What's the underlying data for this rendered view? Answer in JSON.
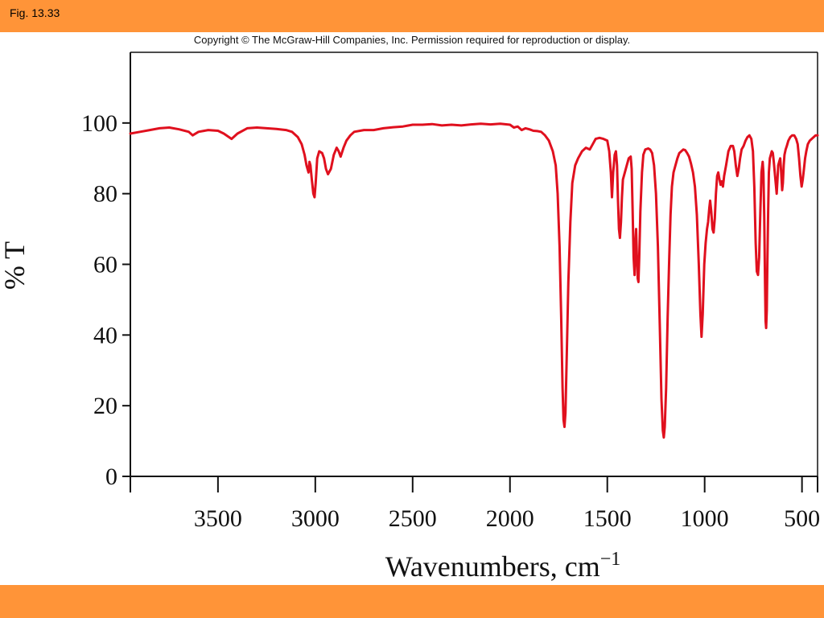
{
  "header": {
    "fig_label": "Fig. 13.33"
  },
  "copyright": "Copyright © The McGraw-Hill Companies, Inc. Permission required for reproduction or display.",
  "colors": {
    "bar": "#ff9438",
    "spectrum": "#e0101e",
    "axis": "#111111"
  },
  "chart_data": {
    "type": "line",
    "title": "",
    "xlabel": "Wavenumbers, cm",
    "xlabel_superscript": "−1",
    "ylabel": "% T",
    "xlim": [
      3950,
      420
    ],
    "ylim": [
      0,
      120
    ],
    "x_reversed": true,
    "grid": false,
    "x_ticks": [
      {
        "value": 3500,
        "label": "3500"
      },
      {
        "value": 3000,
        "label": "3000"
      },
      {
        "value": 2500,
        "label": "2500"
      },
      {
        "value": 2000,
        "label": "2000"
      },
      {
        "value": 1500,
        "label": "1500"
      },
      {
        "value": 1000,
        "label": "1000"
      },
      {
        "value": 500,
        "label": "500"
      }
    ],
    "y_ticks": [
      {
        "value": 0,
        "label": "0"
      },
      {
        "value": 20,
        "label": "20"
      },
      {
        "value": 40,
        "label": "40"
      },
      {
        "value": 60,
        "label": "60"
      },
      {
        "value": 80,
        "label": "80"
      },
      {
        "value": 100,
        "label": "100"
      }
    ],
    "series": [
      {
        "points": [
          [
            3950,
            97
          ],
          [
            3900,
            97.5
          ],
          [
            3850,
            98
          ],
          [
            3800,
            98.5
          ],
          [
            3750,
            98.7
          ],
          [
            3700,
            98.2
          ],
          [
            3650,
            97.5
          ],
          [
            3630,
            96.5
          ],
          [
            3600,
            97.5
          ],
          [
            3550,
            98
          ],
          [
            3500,
            97.8
          ],
          [
            3470,
            97
          ],
          [
            3430,
            95.5
          ],
          [
            3400,
            97
          ],
          [
            3350,
            98.5
          ],
          [
            3300,
            98.7
          ],
          [
            3250,
            98.5
          ],
          [
            3200,
            98.3
          ],
          [
            3150,
            98
          ],
          [
            3120,
            97.5
          ],
          [
            3090,
            96
          ],
          [
            3070,
            94
          ],
          [
            3055,
            91
          ],
          [
            3045,
            88
          ],
          [
            3035,
            86
          ],
          [
            3030,
            89
          ],
          [
            3025,
            88
          ],
          [
            3018,
            84
          ],
          [
            3010,
            80
          ],
          [
            3004,
            79
          ],
          [
            2998,
            83
          ],
          [
            2990,
            90
          ],
          [
            2980,
            92
          ],
          [
            2965,
            91.5
          ],
          [
            2955,
            90
          ],
          [
            2945,
            87
          ],
          [
            2935,
            85.5
          ],
          [
            2920,
            87
          ],
          [
            2905,
            91
          ],
          [
            2890,
            93
          ],
          [
            2880,
            92
          ],
          [
            2870,
            90.5
          ],
          [
            2855,
            93
          ],
          [
            2840,
            95
          ],
          [
            2820,
            96.5
          ],
          [
            2800,
            97.5
          ],
          [
            2750,
            98
          ],
          [
            2700,
            98
          ],
          [
            2650,
            98.5
          ],
          [
            2600,
            98.8
          ],
          [
            2550,
            99
          ],
          [
            2500,
            99.5
          ],
          [
            2450,
            99.5
          ],
          [
            2400,
            99.7
          ],
          [
            2350,
            99.3
          ],
          [
            2300,
            99.5
          ],
          [
            2250,
            99.3
          ],
          [
            2200,
            99.6
          ],
          [
            2150,
            99.8
          ],
          [
            2100,
            99.6
          ],
          [
            2050,
            99.8
          ],
          [
            2000,
            99.5
          ],
          [
            1980,
            98.7
          ],
          [
            1960,
            99
          ],
          [
            1940,
            98
          ],
          [
            1920,
            98.5
          ],
          [
            1900,
            98.2
          ],
          [
            1880,
            97.8
          ],
          [
            1860,
            97.7
          ],
          [
            1840,
            97.5
          ],
          [
            1820,
            96.5
          ],
          [
            1800,
            95
          ],
          [
            1780,
            92
          ],
          [
            1765,
            88
          ],
          [
            1755,
            80
          ],
          [
            1745,
            65
          ],
          [
            1737,
            45
          ],
          [
            1730,
            25
          ],
          [
            1725,
            16
          ],
          [
            1720,
            14
          ],
          [
            1715,
            18
          ],
          [
            1708,
            35
          ],
          [
            1700,
            55
          ],
          [
            1690,
            72
          ],
          [
            1680,
            83
          ],
          [
            1665,
            88
          ],
          [
            1650,
            90
          ],
          [
            1630,
            92
          ],
          [
            1610,
            93
          ],
          [
            1590,
            92.5
          ],
          [
            1575,
            94
          ],
          [
            1560,
            95.5
          ],
          [
            1540,
            95.8
          ],
          [
            1520,
            95.5
          ],
          [
            1500,
            95
          ],
          [
            1490,
            92
          ],
          [
            1482,
            86
          ],
          [
            1476,
            79
          ],
          [
            1470,
            86
          ],
          [
            1462,
            91
          ],
          [
            1456,
            92
          ],
          [
            1450,
            88
          ],
          [
            1445,
            78
          ],
          [
            1440,
            70
          ],
          [
            1435,
            67.5
          ],
          [
            1430,
            72
          ],
          [
            1425,
            79
          ],
          [
            1420,
            84
          ],
          [
            1410,
            86
          ],
          [
            1400,
            88
          ],
          [
            1390,
            90
          ],
          [
            1380,
            90.5
          ],
          [
            1375,
            87
          ],
          [
            1370,
            75
          ],
          [
            1365,
            62
          ],
          [
            1360,
            57
          ],
          [
            1356,
            66
          ],
          [
            1352,
            70
          ],
          [
            1348,
            62
          ],
          [
            1344,
            56
          ],
          [
            1340,
            55
          ],
          [
            1336,
            62
          ],
          [
            1330,
            75
          ],
          [
            1322,
            86
          ],
          [
            1315,
            91
          ],
          [
            1305,
            92.5
          ],
          [
            1290,
            92.8
          ],
          [
            1280,
            92.5
          ],
          [
            1270,
            91.5
          ],
          [
            1260,
            88
          ],
          [
            1250,
            80
          ],
          [
            1240,
            65
          ],
          [
            1230,
            42
          ],
          [
            1222,
            22
          ],
          [
            1215,
            13
          ],
          [
            1210,
            11
          ],
          [
            1205,
            14
          ],
          [
            1198,
            25
          ],
          [
            1190,
            45
          ],
          [
            1182,
            62
          ],
          [
            1175,
            74
          ],
          [
            1168,
            82
          ],
          [
            1160,
            86
          ],
          [
            1150,
            88
          ],
          [
            1140,
            90
          ],
          [
            1130,
            91.5
          ],
          [
            1120,
            92
          ],
          [
            1110,
            92.5
          ],
          [
            1100,
            92.3
          ],
          [
            1090,
            91.5
          ],
          [
            1080,
            90.5
          ],
          [
            1070,
            88.5
          ],
          [
            1060,
            86
          ],
          [
            1050,
            82
          ],
          [
            1040,
            74
          ],
          [
            1030,
            60
          ],
          [
            1022,
            46
          ],
          [
            1016,
            39.5
          ],
          [
            1010,
            46
          ],
          [
            1002,
            60
          ],
          [
            995,
            66
          ],
          [
            988,
            70
          ],
          [
            982,
            72
          ],
          [
            976,
            76
          ],
          [
            972,
            78
          ],
          [
            966,
            75
          ],
          [
            960,
            70
          ],
          [
            954,
            69
          ],
          [
            948,
            73
          ],
          [
            942,
            80
          ],
          [
            936,
            85
          ],
          [
            930,
            86
          ],
          [
            924,
            84
          ],
          [
            918,
            82.5
          ],
          [
            912,
            83.5
          ],
          [
            906,
            82
          ],
          [
            900,
            85
          ],
          [
            890,
            88
          ],
          [
            878,
            92
          ],
          [
            866,
            93.5
          ],
          [
            855,
            93.5
          ],
          [
            848,
            92
          ],
          [
            840,
            88
          ],
          [
            832,
            85
          ],
          [
            825,
            87
          ],
          [
            818,
            90
          ],
          [
            810,
            92.5
          ],
          [
            800,
            93.5
          ],
          [
            790,
            95
          ],
          [
            780,
            96
          ],
          [
            770,
            96.5
          ],
          [
            760,
            95.5
          ],
          [
            752,
            92
          ],
          [
            745,
            82
          ],
          [
            738,
            66
          ],
          [
            732,
            58
          ],
          [
            726,
            57
          ],
          [
            720,
            62
          ],
          [
            714,
            75
          ],
          [
            708,
            86
          ],
          [
            702,
            89
          ],
          [
            698,
            86
          ],
          [
            694,
            74
          ],
          [
            690,
            55
          ],
          [
            687,
            44
          ],
          [
            684,
            42
          ],
          [
            681,
            47
          ],
          [
            678,
            60
          ],
          [
            674,
            75
          ],
          [
            670,
            86
          ],
          [
            665,
            90
          ],
          [
            660,
            91
          ],
          [
            655,
            92
          ],
          [
            650,
            91.5
          ],
          [
            645,
            89
          ],
          [
            640,
            86
          ],
          [
            635,
            83
          ],
          [
            630,
            80
          ],
          [
            626,
            84
          ],
          [
            622,
            88
          ],
          [
            617,
            89
          ],
          [
            612,
            90
          ],
          [
            607,
            86
          ],
          [
            602,
            81
          ],
          [
            598,
            83
          ],
          [
            594,
            88
          ],
          [
            590,
            91
          ],
          [
            584,
            92.5
          ],
          [
            578,
            93.5
          ],
          [
            570,
            95
          ],
          [
            560,
            96
          ],
          [
            550,
            96.5
          ],
          [
            540,
            96.5
          ],
          [
            530,
            95.5
          ],
          [
            522,
            94
          ],
          [
            515,
            90
          ],
          [
            508,
            85
          ],
          [
            502,
            82
          ],
          [
            496,
            84
          ],
          [
            490,
            87
          ],
          [
            484,
            90
          ],
          [
            478,
            92
          ],
          [
            470,
            94
          ],
          [
            460,
            95
          ],
          [
            450,
            95.5
          ],
          [
            440,
            96
          ],
          [
            430,
            96.5
          ],
          [
            420,
            96.5
          ]
        ]
      }
    ]
  }
}
